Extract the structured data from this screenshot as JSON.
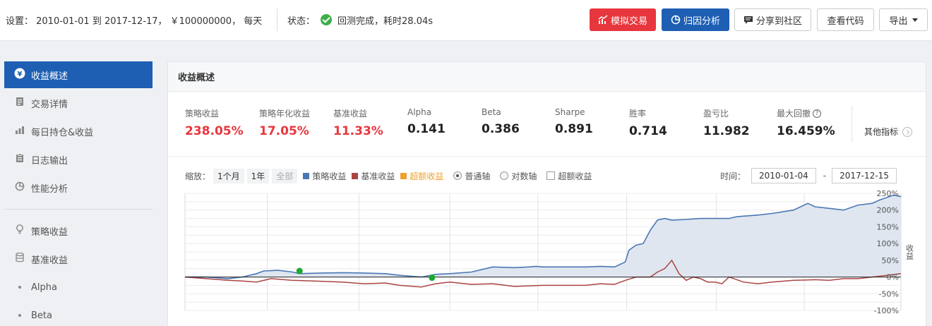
{
  "header": {
    "settings_text": "设置： 2010-01-01 到 2017-12-17， ￥100000000， 每天",
    "status_label": "状态：",
    "status_text": "回测完成，耗时28.04s",
    "buttons": {
      "simulate": "模拟交易",
      "attribution": "归因分析",
      "share": "分享到社区",
      "view_code": "查看代码",
      "export": "导出"
    }
  },
  "sidebar": {
    "items": [
      {
        "label": "收益概述",
        "icon": "yen-icon",
        "active": true
      },
      {
        "label": "交易详情",
        "icon": "document-icon"
      },
      {
        "label": "每日持仓&收益",
        "icon": "bar-chart-icon"
      },
      {
        "label": "日志输出",
        "icon": "clipboard-icon"
      },
      {
        "label": "性能分析",
        "icon": "pie-icon"
      },
      {
        "label": "策略收益",
        "icon": "lightbulb-icon"
      },
      {
        "label": "基准收益",
        "icon": "database-icon"
      },
      {
        "label": "Alpha",
        "icon": "dot-icon"
      },
      {
        "label": "Beta",
        "icon": "dot-icon"
      }
    ]
  },
  "panel": {
    "title": "收益概述",
    "metrics": [
      {
        "label": "策略收益",
        "value": "238.05%",
        "red": true
      },
      {
        "label": "策略年化收益",
        "value": "17.05%",
        "red": true
      },
      {
        "label": "基准收益",
        "value": "11.33%",
        "red": true
      },
      {
        "label": "Alpha",
        "value": "0.141"
      },
      {
        "label": "Beta",
        "value": "0.386"
      },
      {
        "label": "Sharpe",
        "value": "0.891"
      },
      {
        "label": "胜率",
        "value": "0.714"
      },
      {
        "label": "盈亏比",
        "value": "11.982"
      },
      {
        "label": "最大回撤",
        "value": "16.459%",
        "help": "?"
      }
    ],
    "more_label": "其他指标"
  },
  "controls": {
    "zoom_label": "缩放：",
    "zoom_options": [
      "1个月",
      "1年",
      "全部"
    ],
    "legend": [
      {
        "label": "策略收益",
        "color": "#4a77b4"
      },
      {
        "label": "基准收益",
        "color": "#a94442"
      },
      {
        "label": "超额收益",
        "color": "#f0a030"
      }
    ],
    "axis_modes": [
      "普通轴",
      "对数轴"
    ],
    "excess_checkbox": "超额收益",
    "time_label": "时间：",
    "start_date": "2010-01-04",
    "end_date": "2017-12-15",
    "dash": "-"
  },
  "chart_data": {
    "type": "area",
    "ylabel": "收益",
    "yticks": [
      "250%",
      "200%",
      "150%",
      "100%",
      "50%",
      "0%",
      "-50%",
      "-100%"
    ],
    "ylim": [
      -100,
      250
    ],
    "x_range": [
      "2010-01-04",
      "2017-12-15"
    ],
    "series": [
      {
        "name": "策略收益",
        "color": "#4a77b4",
        "x": [
          0,
          0.03,
          0.06,
          0.08,
          0.1,
          0.11,
          0.13,
          0.15,
          0.16,
          0.19,
          0.22,
          0.25,
          0.28,
          0.3,
          0.33,
          0.35,
          0.37,
          0.4,
          0.43,
          0.46,
          0.48,
          0.49,
          0.5,
          0.53,
          0.56,
          0.58,
          0.6,
          0.615,
          0.62,
          0.63,
          0.64,
          0.65,
          0.66,
          0.67,
          0.68,
          0.7,
          0.72,
          0.74,
          0.76,
          0.77,
          0.78,
          0.8,
          0.82,
          0.85,
          0.87,
          0.88,
          0.9,
          0.92,
          0.94,
          0.96,
          0.97,
          0.99,
          1.0
        ],
        "y": [
          0,
          0,
          -5,
          0,
          10,
          18,
          20,
          15,
          10,
          12,
          13,
          12,
          10,
          5,
          0,
          8,
          10,
          15,
          30,
          28,
          30,
          32,
          30,
          30,
          30,
          32,
          30,
          45,
          80,
          95,
          100,
          140,
          170,
          175,
          170,
          172,
          175,
          175,
          175,
          180,
          182,
          185,
          190,
          200,
          220,
          210,
          205,
          200,
          215,
          220,
          230,
          245,
          240
        ]
      },
      {
        "name": "基准收益",
        "color": "#a94442",
        "x": [
          0,
          0.03,
          0.06,
          0.08,
          0.1,
          0.12,
          0.15,
          0.18,
          0.22,
          0.25,
          0.28,
          0.3,
          0.33,
          0.35,
          0.37,
          0.4,
          0.43,
          0.46,
          0.5,
          0.53,
          0.56,
          0.58,
          0.6,
          0.615,
          0.63,
          0.65,
          0.66,
          0.67,
          0.68,
          0.69,
          0.7,
          0.71,
          0.72,
          0.73,
          0.74,
          0.75,
          0.76,
          0.78,
          0.8,
          0.82,
          0.85,
          0.88,
          0.9,
          0.92,
          0.94,
          0.96,
          0.98,
          1.0
        ],
        "y": [
          0,
          -5,
          -10,
          -12,
          -15,
          -5,
          -10,
          -12,
          -15,
          -20,
          -18,
          -25,
          -30,
          -20,
          -15,
          -22,
          -20,
          -28,
          -25,
          -25,
          -25,
          -20,
          -22,
          -10,
          0,
          0,
          15,
          25,
          50,
          10,
          -10,
          0,
          -5,
          -15,
          -15,
          -20,
          0,
          -15,
          -20,
          -15,
          -10,
          -8,
          -10,
          -5,
          -5,
          0,
          5,
          10
        ]
      }
    ],
    "markers": [
      {
        "x": 0.16,
        "y": 18,
        "color": "#1aaa2e"
      },
      {
        "x": 0.345,
        "y": -2,
        "color": "#1aaa2e"
      }
    ]
  }
}
